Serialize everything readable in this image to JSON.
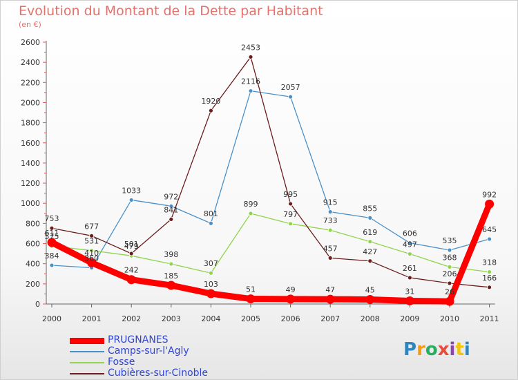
{
  "header": {
    "title": "Evolution du Montant de la Dette par Habitant",
    "subtitle": "(en €)"
  },
  "logo": {
    "letters": [
      "P",
      "r",
      "o",
      "x",
      "i",
      "t",
      "i"
    ],
    "colors": [
      "#2e86c1",
      "#f39c12",
      "#27ae60",
      "#e74c3c",
      "#8e44ad",
      "#f1c40f",
      "#2e86c1"
    ]
  },
  "chart_data": {
    "type": "line",
    "title": "Evolution du Montant de la Dette par Habitant",
    "subtitle": "(en €)",
    "x": [
      "2000",
      "2001",
      "2002",
      "2003",
      "2004",
      "2005",
      "2006",
      "2007",
      "2008",
      "2009",
      "2010",
      "2011"
    ],
    "ylim": [
      0,
      2600
    ],
    "yticks": [
      0,
      200,
      400,
      600,
      800,
      1000,
      1200,
      1400,
      1600,
      1800,
      2000,
      2200,
      2400,
      2600
    ],
    "grid": false,
    "legend": "bottom-left",
    "series": [
      {
        "name": "PRUGNANES",
        "color": "#ff0000",
        "values": [
          611,
          410,
          242,
          185,
          103,
          51,
          49,
          47,
          45,
          31,
          26,
          992
        ],
        "labels": [
          "611",
          "410",
          "242",
          "185",
          "103",
          "51",
          "49",
          "47",
          "45",
          "31",
          "26",
          "992"
        ]
      },
      {
        "name": "Camps-sur-l'Agly",
        "color": "#4a90c8",
        "values": [
          384,
          360,
          1033,
          972,
          801,
          2116,
          2057,
          915,
          855,
          606,
          535,
          645
        ],
        "labels": [
          "384",
          "360",
          "1033",
          "972",
          "801",
          "2116",
          "2057",
          "915",
          "855",
          "606",
          "535",
          "645"
        ]
      },
      {
        "name": "Fosse",
        "color": "#8fd44a",
        "values": [
          575,
          531,
          479,
          398,
          307,
          899,
          797,
          733,
          619,
          497,
          368,
          318
        ],
        "labels": [
          "575",
          "531",
          "479",
          "398",
          "307",
          "899",
          "797",
          "733",
          "619",
          "497",
          "368",
          "318"
        ]
      },
      {
        "name": "Cubières-sur-Cinoble",
        "color": "#6b1c1c",
        "values": [
          753,
          677,
          501,
          841,
          1920,
          2453,
          995,
          457,
          427,
          261,
          206,
          166
        ],
        "labels": [
          "753",
          "677",
          "501",
          "841",
          "1920",
          "2453",
          "995",
          "457",
          "427",
          "261",
          "206",
          "166"
        ]
      }
    ]
  }
}
